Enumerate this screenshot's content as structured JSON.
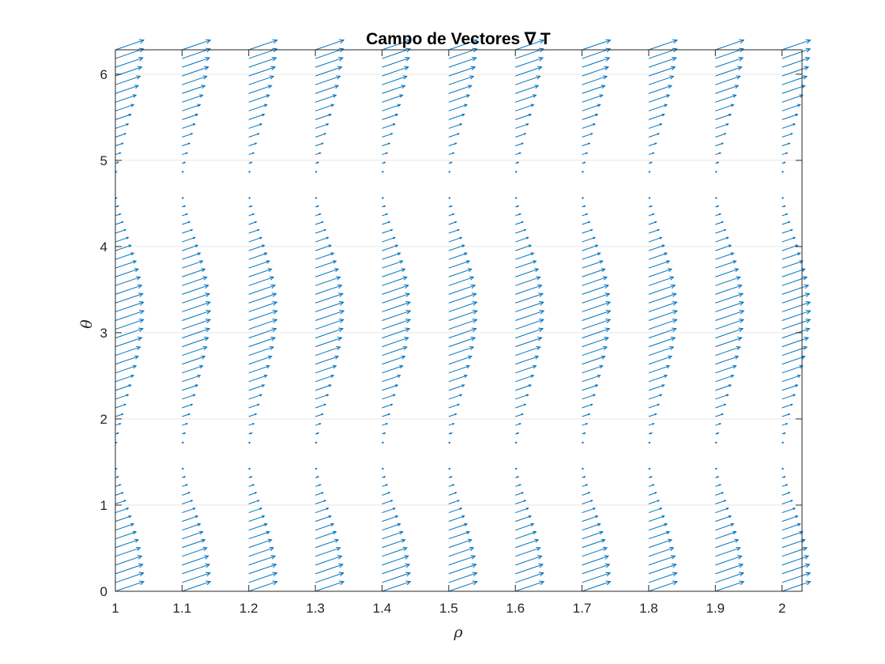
{
  "chart_data": {
    "type": "quiver",
    "title": "Campo de Vectores ∇ T",
    "xlabel": "ρ",
    "ylabel": "θ",
    "xlim": [
      1.0,
      2.03
    ],
    "ylim": [
      0,
      6.283
    ],
    "x_ticks": [
      "1",
      "1.1",
      "1.2",
      "1.3",
      "1.4",
      "1.5",
      "1.6",
      "1.7",
      "1.8",
      "1.9",
      "2"
    ],
    "y_ticks": [
      "0",
      "1",
      "2",
      "3",
      "4",
      "5",
      "6"
    ],
    "grid": "horizontal",
    "box": true,
    "color": "#0072bd",
    "rho_values": [
      1.0,
      1.1,
      1.2,
      1.3,
      1.4,
      1.5,
      1.6,
      1.7,
      1.8,
      1.9,
      2.0
    ],
    "theta_range": [
      0,
      6.283
    ],
    "theta_samples": 63,
    "vector_description": "Vectors on each column point right and upward; arrow length peaks near θ = 0, θ ≈ 3.1 and θ ≈ 6.28 and vanishes near θ ≈ 1.6 and θ ≈ 4.7"
  }
}
